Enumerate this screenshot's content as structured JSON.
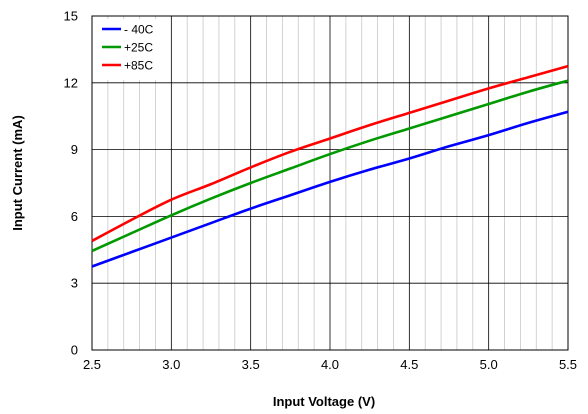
{
  "chart_data": {
    "type": "line",
    "xlabel": "Input  Voltage (V)",
    "ylabel": "Input Current (mA)",
    "xlim": [
      2.5,
      5.5
    ],
    "ylim": [
      0,
      15
    ],
    "x_ticks": [
      "2.5",
      "3.0",
      "3.5",
      "4.0",
      "4.5",
      "5.0",
      "5.5"
    ],
    "y_ticks": [
      "0",
      "3",
      "6",
      "9",
      "12",
      "15"
    ],
    "grid": true,
    "legend_position": "top-left",
    "series": [
      {
        "name": "- 40C",
        "color": "#0000ff",
        "x": [
          2.5,
          2.75,
          3.0,
          3.25,
          3.5,
          3.75,
          4.0,
          4.25,
          4.5,
          4.75,
          5.0,
          5.25,
          5.5
        ],
        "y": [
          3.75,
          4.4,
          5.05,
          5.7,
          6.35,
          6.95,
          7.55,
          8.1,
          8.6,
          9.15,
          9.65,
          10.2,
          10.7
        ]
      },
      {
        "name": "+25C",
        "color": "#009900",
        "x": [
          2.5,
          2.75,
          3.0,
          3.25,
          3.5,
          3.75,
          4.0,
          4.25,
          4.5,
          4.75,
          5.0,
          5.25,
          5.5
        ],
        "y": [
          4.45,
          5.25,
          6.05,
          6.8,
          7.5,
          8.15,
          8.8,
          9.4,
          9.95,
          10.5,
          11.05,
          11.6,
          12.1
        ]
      },
      {
        "name": "+85C",
        "color": "#ff0000",
        "x": [
          2.5,
          2.75,
          3.0,
          3.25,
          3.5,
          3.75,
          4.0,
          4.25,
          4.5,
          4.75,
          5.0,
          5.25,
          5.5
        ],
        "y": [
          4.9,
          5.85,
          6.75,
          7.45,
          8.2,
          8.9,
          9.5,
          10.1,
          10.65,
          11.2,
          11.75,
          12.25,
          12.75
        ]
      }
    ]
  }
}
